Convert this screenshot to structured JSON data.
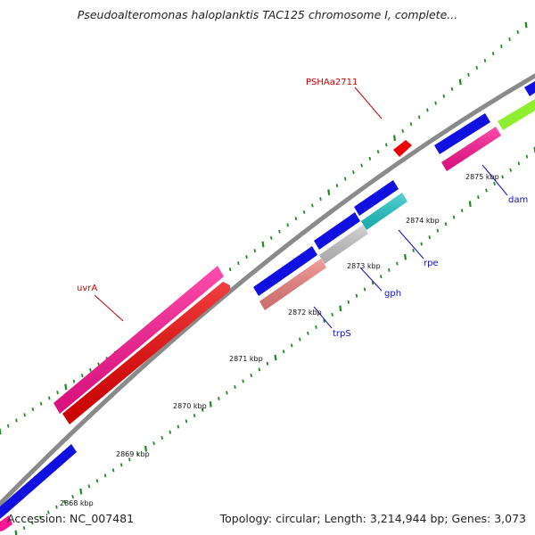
{
  "title": "Pseudoalteromonas haloplanktis TAC125 chromosome I, complete...",
  "footer": {
    "accession": "Accession: NC_007481",
    "summary": "Topology: circular; Length: 3,214,944 bp; Genes: 3,073"
  },
  "ticks": [
    {
      "label": "2868 kbp"
    },
    {
      "label": "2869 kbp"
    },
    {
      "label": "2870 kbp"
    },
    {
      "label": "2871 kbp"
    },
    {
      "label": "2872 kbp"
    },
    {
      "label": "2873 kbp"
    },
    {
      "label": "2874 kbp"
    },
    {
      "label": "2875 kbp"
    }
  ],
  "gene_labels": {
    "uvrA": "uvrA",
    "PSHAa2711": "PSHAa2711",
    "trpS": "trpS",
    "gph": "gph",
    "rpe": "rpe",
    "dam": "dam"
  },
  "colors": {
    "backbone": "#8a8a8a",
    "tick_green": "#1f8a1f",
    "blue": "#1010e0",
    "red": "#ee0000",
    "pink": "#ff1493",
    "salmon": "#f08080",
    "gray": "#c8c8c8",
    "cyan": "#20c8c8",
    "lime": "#90ee30"
  }
}
